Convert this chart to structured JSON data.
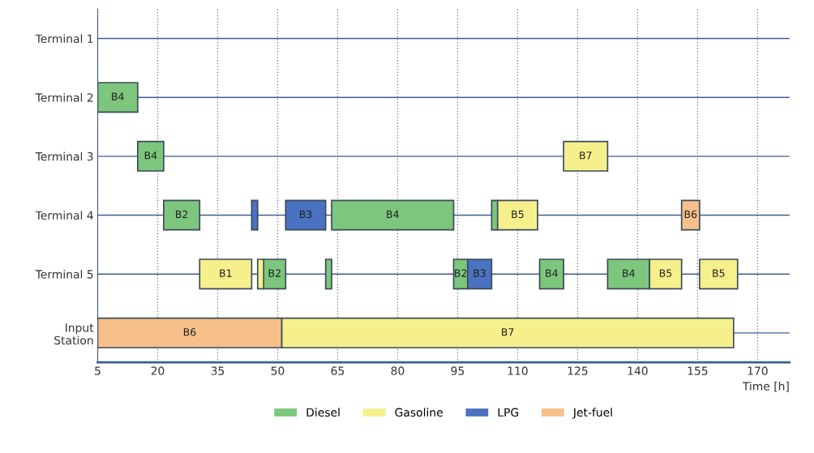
{
  "chart_data": {
    "type": "bar",
    "orientation": "horizontal",
    "xlabel": "Time [h]",
    "categories": [
      "Terminal 1",
      "Terminal 2",
      "Terminal 3",
      "Terminal 4",
      "Terminal 5",
      "Input\nStation"
    ],
    "xlim": [
      5,
      178
    ],
    "xticks": [
      5,
      20,
      35,
      50,
      65,
      80,
      95,
      110,
      125,
      140,
      155,
      170
    ],
    "grid": true,
    "legend": "bottom",
    "series": [
      {
        "name": "Diesel",
        "color": "#7dc67d",
        "values": [
          null,
          10,
          6.5,
          9,
          5.5,
          null
        ],
        "base": [
          null,
          5,
          15,
          21.5,
          46.5,
          null
        ],
        "value_labels": [
          null,
          "B4",
          "B4",
          "B2",
          "B2",
          null
        ]
      },
      {
        "color": "#7dc67d",
        "values": [
          null,
          null,
          null,
          30.5,
          1.5,
          null
        ],
        "base": [
          null,
          null,
          null,
          63.5,
          62,
          null
        ],
        "value_labels": [
          null,
          null,
          null,
          "B4",
          null,
          null
        ]
      },
      {
        "color": "#7dc67d",
        "values": [
          null,
          null,
          null,
          1.5,
          3.5,
          null
        ],
        "base": [
          null,
          null,
          null,
          103.5,
          94,
          null
        ],
        "value_labels": [
          null,
          null,
          null,
          null,
          "B2",
          null
        ]
      },
      {
        "color": "#7dc67d",
        "values": [
          null,
          null,
          null,
          null,
          6,
          null
        ],
        "base": [
          null,
          null,
          null,
          null,
          115.5,
          null
        ],
        "value_labels": [
          null,
          null,
          null,
          null,
          "B4",
          null
        ]
      },
      {
        "color": "#7dc67d",
        "values": [
          null,
          null,
          null,
          null,
          10.5,
          null
        ],
        "base": [
          null,
          null,
          null,
          null,
          132.5,
          null
        ],
        "value_labels": [
          null,
          null,
          null,
          null,
          "B4",
          null
        ]
      },
      {
        "name": "Gasoline",
        "color": "#f5f08c",
        "values": [
          null,
          null,
          11,
          10,
          13,
          113
        ],
        "base": [
          null,
          null,
          121.5,
          105,
          30.5,
          51
        ],
        "value_labels": [
          null,
          null,
          "B7",
          "B5",
          "B1",
          "B7"
        ]
      },
      {
        "color": "#f5f08c",
        "values": [
          null,
          null,
          null,
          null,
          1.5,
          null
        ],
        "base": [
          null,
          null,
          null,
          null,
          45,
          null
        ],
        "value_labels": [
          null,
          null,
          null,
          null,
          null,
          null
        ]
      },
      {
        "color": "#f5f08c",
        "values": [
          null,
          null,
          null,
          null,
          8,
          null
        ],
        "base": [
          null,
          null,
          null,
          null,
          143,
          null
        ],
        "value_labels": [
          null,
          null,
          null,
          null,
          "B5",
          null
        ]
      },
      {
        "color": "#f5f08c",
        "values": [
          null,
          null,
          null,
          null,
          9.5,
          null
        ],
        "base": [
          null,
          null,
          null,
          null,
          155.5,
          null
        ],
        "value_labels": [
          null,
          null,
          null,
          null,
          "B5",
          null
        ]
      },
      {
        "name": "LPG",
        "color": "#4a72c0",
        "values": [
          null,
          null,
          null,
          1.5,
          6,
          null
        ],
        "base": [
          null,
          null,
          null,
          43.5,
          97.5,
          null
        ],
        "value_labels": [
          null,
          null,
          null,
          null,
          "B3",
          null
        ]
      },
      {
        "color": "#4a72c0",
        "values": [
          null,
          null,
          null,
          10,
          null,
          null
        ],
        "base": [
          null,
          null,
          null,
          52,
          null,
          null
        ],
        "value_labels": [
          null,
          null,
          null,
          "B3",
          null,
          null
        ]
      },
      {
        "name": "Jet-fuel",
        "color": "#f7c08a",
        "values": [
          null,
          null,
          null,
          4.5,
          null,
          46
        ],
        "base": [
          null,
          null,
          null,
          151,
          null,
          5
        ],
        "value_labels": [
          null,
          null,
          null,
          "B6",
          null,
          "B6"
        ]
      }
    ]
  }
}
